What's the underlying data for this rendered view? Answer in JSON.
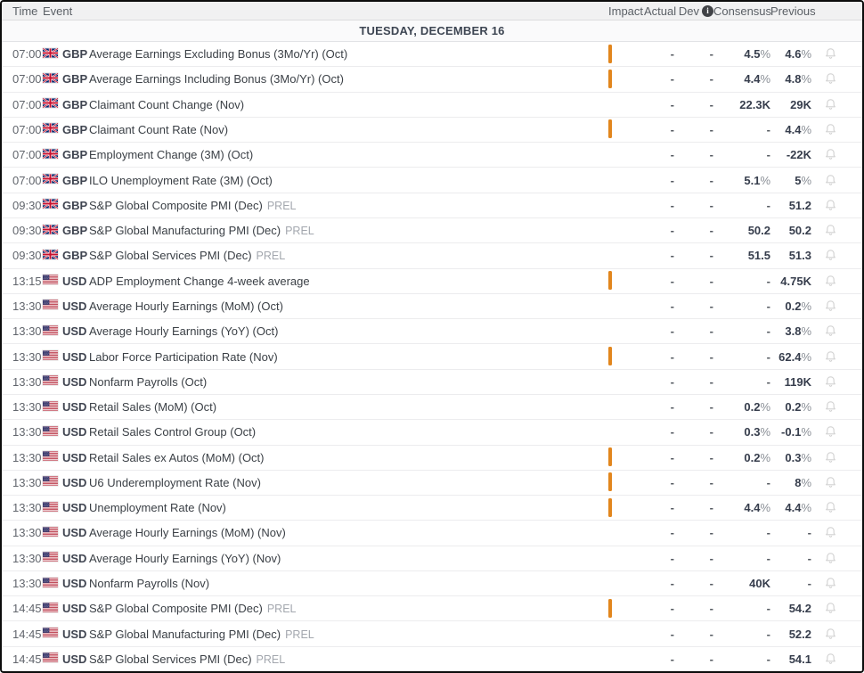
{
  "header": {
    "time": "Time",
    "event": "Event",
    "impact": "Impact",
    "actual": "Actual",
    "dev": "Dev",
    "dev_info": "i",
    "consensus": "Consensus",
    "previous": "Previous"
  },
  "date_banner": "TUESDAY, DECEMBER 16",
  "colors": {
    "impact_high": "#d05548",
    "impact_medium": "#e2861d",
    "header_bg": "#f1f1f2",
    "value_text": "#363d4c",
    "bell_gray": "#d2d2d2"
  },
  "table": {
    "rows": [
      {
        "time": "07:00",
        "currency": "GBP",
        "event": "Average Earnings Excluding Bonus (3Mo/Yr) (Oct)",
        "suffix": "",
        "impact": "medium",
        "actual": "-",
        "dev": "-",
        "consensus": "4.5%",
        "previous": "4.6%"
      },
      {
        "time": "07:00",
        "currency": "GBP",
        "event": "Average Earnings Including Bonus (3Mo/Yr) (Oct)",
        "suffix": "",
        "impact": "medium",
        "actual": "-",
        "dev": "-",
        "consensus": "4.4%",
        "previous": "4.8%"
      },
      {
        "time": "07:00",
        "currency": "GBP",
        "event": "Claimant Count Change (Nov)",
        "suffix": "",
        "impact": "high",
        "actual": "-",
        "dev": "-",
        "consensus": "22.3K",
        "previous": "29K"
      },
      {
        "time": "07:00",
        "currency": "GBP",
        "event": "Claimant Count Rate (Nov)",
        "suffix": "",
        "impact": "medium",
        "actual": "-",
        "dev": "-",
        "consensus": "-",
        "previous": "4.4%"
      },
      {
        "time": "07:00",
        "currency": "GBP",
        "event": "Employment Change (3M) (Oct)",
        "suffix": "",
        "impact": "high",
        "actual": "-",
        "dev": "-",
        "consensus": "-",
        "previous": "-22K"
      },
      {
        "time": "07:00",
        "currency": "GBP",
        "event": "ILO Unemployment Rate (3M) (Oct)",
        "suffix": "",
        "impact": "high",
        "actual": "-",
        "dev": "-",
        "consensus": "5.1%",
        "previous": "5%"
      },
      {
        "time": "09:30",
        "currency": "GBP",
        "event": "S&P Global Composite PMI (Dec)",
        "suffix": "PREL",
        "impact": "high",
        "actual": "-",
        "dev": "-",
        "consensus": "-",
        "previous": "51.2"
      },
      {
        "time": "09:30",
        "currency": "GBP",
        "event": "S&P Global Manufacturing PMI (Dec)",
        "suffix": "PREL",
        "impact": "high",
        "actual": "-",
        "dev": "-",
        "consensus": "50.2",
        "previous": "50.2"
      },
      {
        "time": "09:30",
        "currency": "GBP",
        "event": "S&P Global Services PMI (Dec)",
        "suffix": "PREL",
        "impact": "high",
        "actual": "-",
        "dev": "-",
        "consensus": "51.5",
        "previous": "51.3"
      },
      {
        "time": "13:15",
        "currency": "USD",
        "event": "ADP Employment Change 4-week average",
        "suffix": "",
        "impact": "medium",
        "actual": "-",
        "dev": "-",
        "consensus": "-",
        "previous": "4.75K"
      },
      {
        "time": "13:30",
        "currency": "USD",
        "event": "Average Hourly Earnings (MoM) (Oct)",
        "suffix": "",
        "impact": "high",
        "actual": "-",
        "dev": "-",
        "consensus": "-",
        "previous": "0.2%"
      },
      {
        "time": "13:30",
        "currency": "USD",
        "event": "Average Hourly Earnings (YoY) (Oct)",
        "suffix": "",
        "impact": "high",
        "actual": "-",
        "dev": "-",
        "consensus": "-",
        "previous": "3.8%"
      },
      {
        "time": "13:30",
        "currency": "USD",
        "event": "Labor Force Participation Rate (Nov)",
        "suffix": "",
        "impact": "medium",
        "actual": "-",
        "dev": "-",
        "consensus": "-",
        "previous": "62.4%"
      },
      {
        "time": "13:30",
        "currency": "USD",
        "event": "Nonfarm Payrolls (Oct)",
        "suffix": "",
        "impact": "high",
        "actual": "-",
        "dev": "-",
        "consensus": "-",
        "previous": "119K"
      },
      {
        "time": "13:30",
        "currency": "USD",
        "event": "Retail Sales (MoM) (Oct)",
        "suffix": "",
        "impact": "high",
        "actual": "-",
        "dev": "-",
        "consensus": "0.2%",
        "previous": "0.2%"
      },
      {
        "time": "13:30",
        "currency": "USD",
        "event": "Retail Sales Control Group (Oct)",
        "suffix": "",
        "impact": "high",
        "actual": "-",
        "dev": "-",
        "consensus": "0.3%",
        "previous": "-0.1%"
      },
      {
        "time": "13:30",
        "currency": "USD",
        "event": "Retail Sales ex Autos (MoM) (Oct)",
        "suffix": "",
        "impact": "medium",
        "actual": "-",
        "dev": "-",
        "consensus": "0.2%",
        "previous": "0.3%"
      },
      {
        "time": "13:30",
        "currency": "USD",
        "event": "U6 Underemployment Rate (Nov)",
        "suffix": "",
        "impact": "medium",
        "actual": "-",
        "dev": "-",
        "consensus": "-",
        "previous": "8%"
      },
      {
        "time": "13:30",
        "currency": "USD",
        "event": "Unemployment Rate (Nov)",
        "suffix": "",
        "impact": "medium",
        "actual": "-",
        "dev": "-",
        "consensus": "4.4%",
        "previous": "4.4%"
      },
      {
        "time": "13:30",
        "currency": "USD",
        "event": "Average Hourly Earnings (MoM) (Nov)",
        "suffix": "",
        "impact": "high",
        "actual": "-",
        "dev": "-",
        "consensus": "-",
        "previous": "-"
      },
      {
        "time": "13:30",
        "currency": "USD",
        "event": "Average Hourly Earnings (YoY) (Nov)",
        "suffix": "",
        "impact": "high",
        "actual": "-",
        "dev": "-",
        "consensus": "-",
        "previous": "-"
      },
      {
        "time": "13:30",
        "currency": "USD",
        "event": "Nonfarm Payrolls (Nov)",
        "suffix": "",
        "impact": "high",
        "actual": "-",
        "dev": "-",
        "consensus": "40K",
        "previous": "-"
      },
      {
        "time": "14:45",
        "currency": "USD",
        "event": "S&P Global Composite PMI (Dec)",
        "suffix": "PREL",
        "impact": "medium",
        "actual": "-",
        "dev": "-",
        "consensus": "-",
        "previous": "54.2"
      },
      {
        "time": "14:45",
        "currency": "USD",
        "event": "S&P Global Manufacturing PMI (Dec)",
        "suffix": "PREL",
        "impact": "high",
        "actual": "-",
        "dev": "-",
        "consensus": "-",
        "previous": "52.2"
      },
      {
        "time": "14:45",
        "currency": "USD",
        "event": "S&P Global Services PMI (Dec)",
        "suffix": "PREL",
        "impact": "high",
        "actual": "-",
        "dev": "-",
        "consensus": "-",
        "previous": "54.1"
      }
    ]
  }
}
